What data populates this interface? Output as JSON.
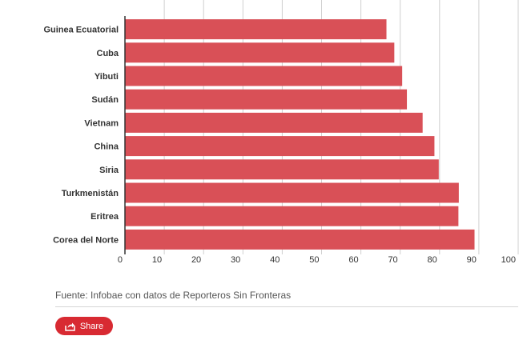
{
  "chart_data": {
    "type": "bar",
    "orientation": "horizontal",
    "categories": [
      "Guinea Ecuatorial",
      "Cuba",
      "Yibuti",
      "Sudán",
      "Vietnam",
      "China",
      "Siria",
      "Turkmenistán",
      "Eritrea",
      "Corea del Norte"
    ],
    "values": [
      66.5,
      68.5,
      70.5,
      71.7,
      75.7,
      78.7,
      79.8,
      84.9,
      84.8,
      88.9
    ],
    "xlim": [
      0,
      100
    ],
    "xticks": [
      0,
      10,
      20,
      30,
      40,
      50,
      60,
      70,
      80,
      90,
      100
    ],
    "grid": true,
    "bar_color": "#d95057",
    "title": "",
    "xlabel": "",
    "ylabel": ""
  },
  "footer": {
    "source": "Fuente: Infobae con datos de Reporteros Sin Fronteras",
    "share_label": "Share",
    "share_color": "#d82a32",
    "share_icon": "share-icon"
  }
}
